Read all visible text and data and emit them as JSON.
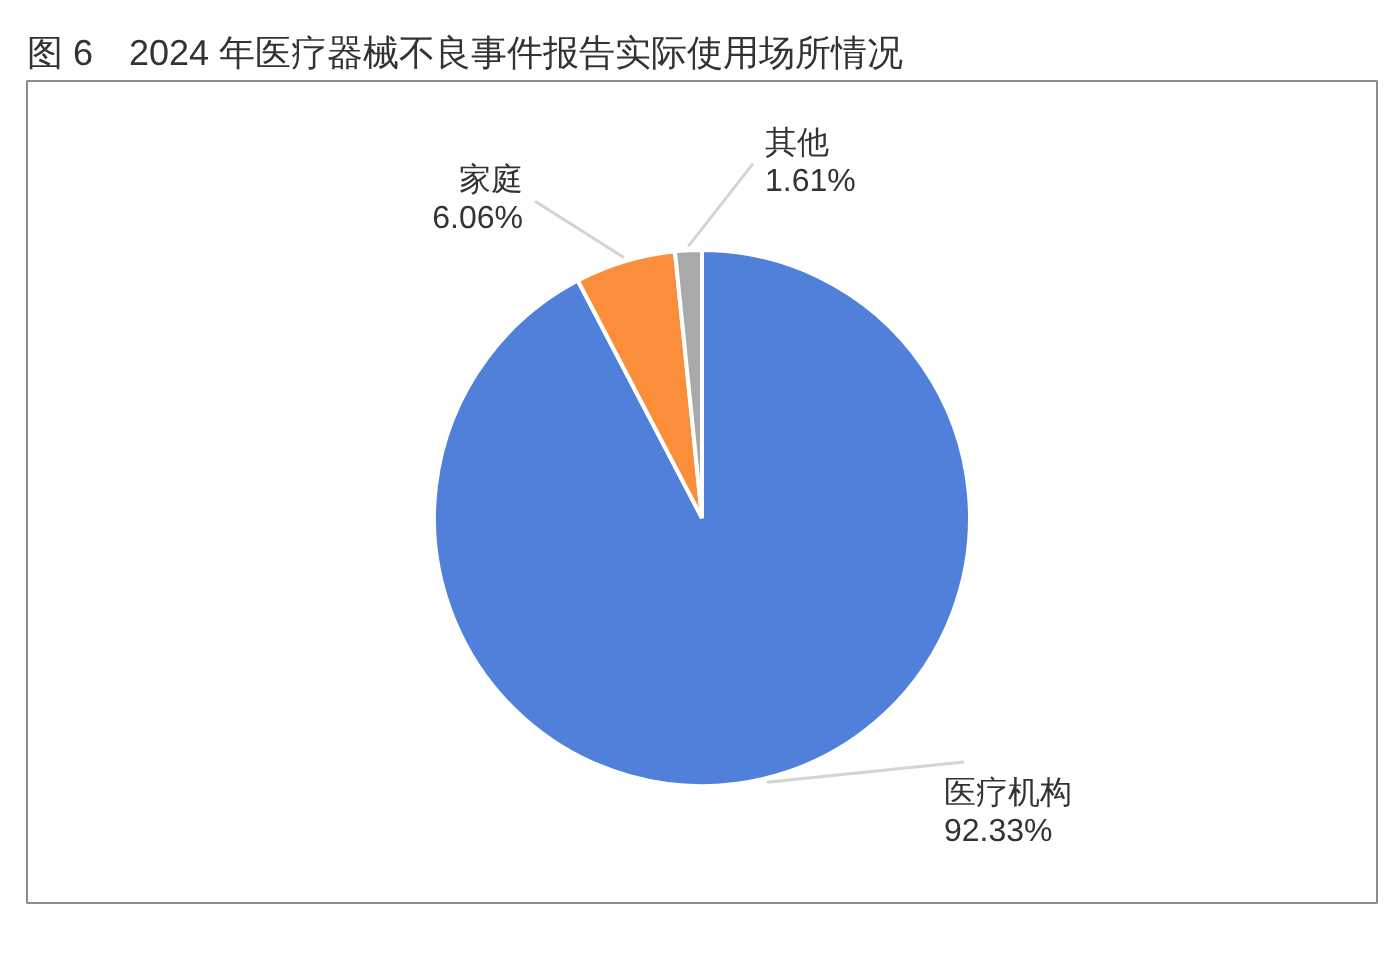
{
  "chart_data": {
    "type": "pie",
    "title": "图 6　2024 年医疗器械不良事件报告实际使用场所情况",
    "categories": [
      "医疗机构",
      "家庭",
      "其他"
    ],
    "values": [
      92.33,
      6.06,
      1.61
    ],
    "colors": [
      "#5180da",
      "#fb8e3b",
      "#a9a9a9"
    ],
    "value_labels": [
      "92.33%",
      "6.06%",
      "1.61%"
    ]
  }
}
